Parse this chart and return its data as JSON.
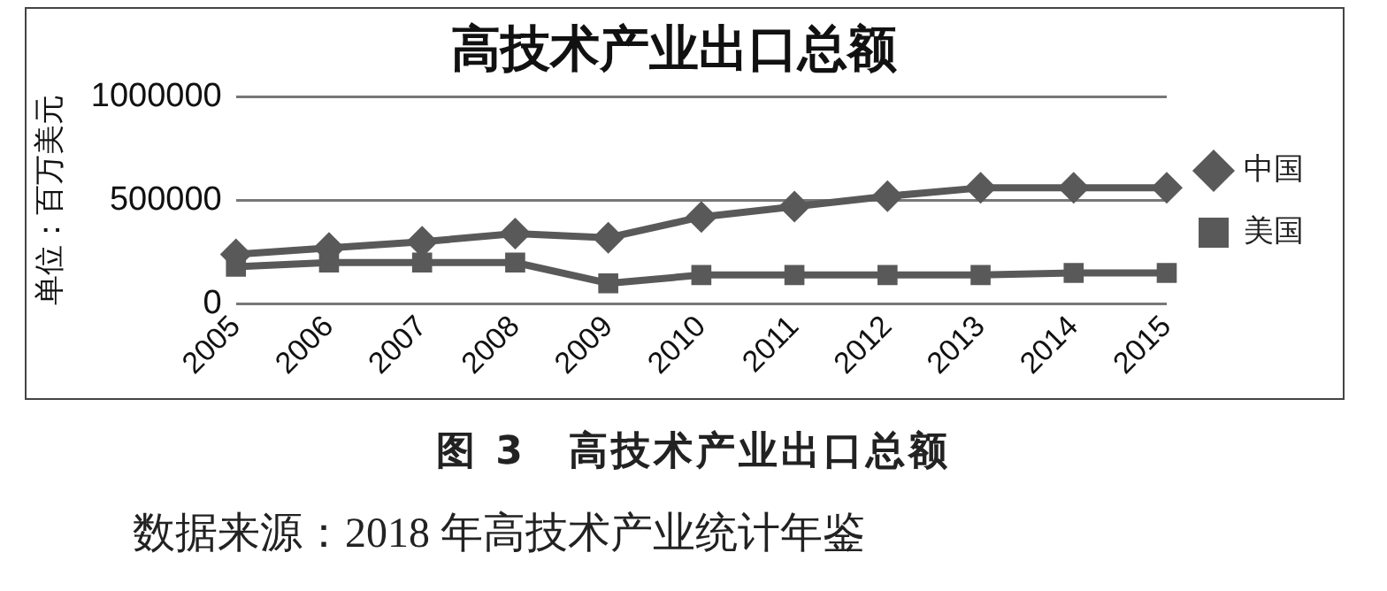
{
  "chart_data": {
    "type": "line",
    "title": "高技术产业出口总额",
    "ylabel": "单位：百万美元",
    "categories": [
      "2005",
      "2006",
      "2007",
      "2008",
      "2009",
      "2010",
      "2011",
      "2012",
      "2013",
      "2014",
      "2015"
    ],
    "series": [
      {
        "name": "中国",
        "color": "#595959",
        "marker": "diamond",
        "values": [
          240000,
          270000,
          300000,
          340000,
          320000,
          420000,
          470000,
          520000,
          560000,
          560000,
          560000
        ]
      },
      {
        "name": "美国",
        "color": "#595959",
        "marker": "square",
        "values": [
          180000,
          200000,
          200000,
          200000,
          100000,
          140000,
          140000,
          140000,
          140000,
          150000,
          150000
        ]
      }
    ],
    "ylim": [
      0,
      1000000
    ],
    "yticks": [
      0,
      500000,
      1000000
    ],
    "grid": "y",
    "legend": "right",
    "line_style": "solid",
    "annotations": [
      "图 3　高技术产业出口总额",
      "数据来源：2018 年高技术产业统计年鉴"
    ]
  }
}
